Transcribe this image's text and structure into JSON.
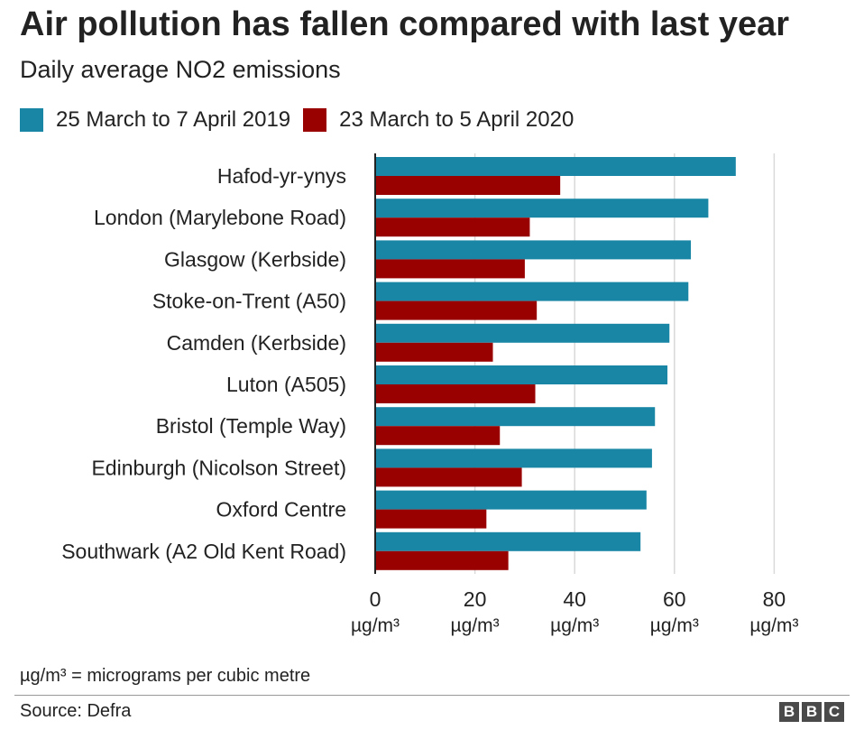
{
  "title": "Air pollution has fallen compared with last year",
  "subtitle": "Daily average NO2 emissions",
  "footnote": "µg/m³ = micrograms per cubic metre",
  "source": "Source: Defra",
  "logo": {
    "letters": [
      "B",
      "B",
      "C"
    ]
  },
  "colors": {
    "series_2019": "#1a86a6",
    "series_2020": "#990000",
    "grid": "#d9d9d9",
    "axis": "#222222"
  },
  "chart_data": {
    "type": "bar",
    "orientation": "horizontal",
    "title": "Air pollution has fallen compared with last year",
    "subtitle": "Daily average NO2 emissions",
    "categories": [
      "Hafod-yr-ynys",
      "London (Marylebone Road)",
      "Glasgow (Kerbside)",
      "Stoke-on-Trent (A50)",
      "Camden (Kerbside)",
      "Luton (A505)",
      "Bristol (Temple Way)",
      "Edinburgh (Nicolson Street)",
      "Oxford Centre",
      "Southwark (A2 Old Kent Road)"
    ],
    "series": [
      {
        "name": "25 March to 7 April 2019",
        "color": "#1a86a6",
        "values": [
          72.3,
          66.8,
          63.3,
          62.8,
          59.0,
          58.6,
          56.1,
          55.5,
          54.4,
          53.2
        ]
      },
      {
        "name": "23 March to 5 April 2020",
        "color": "#990000",
        "values": [
          37.1,
          31.0,
          30.0,
          32.4,
          23.6,
          32.1,
          25.0,
          29.4,
          22.3,
          26.7
        ]
      }
    ],
    "xlim": [
      0,
      80
    ],
    "xticks": [
      0,
      20,
      40,
      60,
      80
    ],
    "tick_unit": "µg/m³",
    "grid": true,
    "legend_position": "top-left"
  }
}
